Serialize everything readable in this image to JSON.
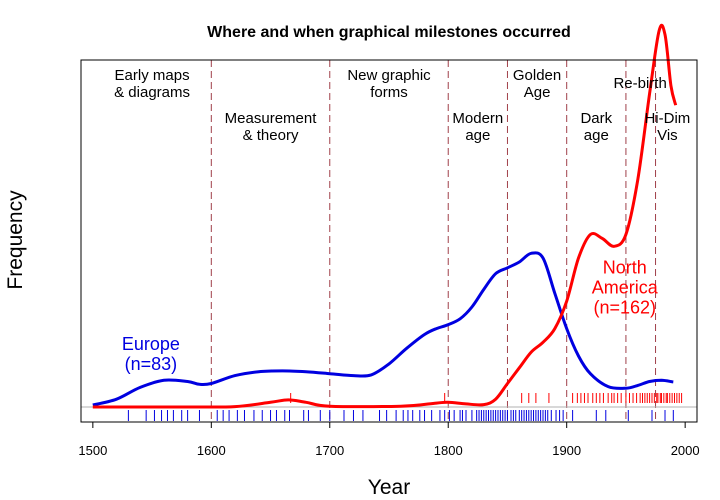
{
  "chart_data": {
    "type": "line",
    "title": "Where and when graphical milestones occurred",
    "xlabel": "Year",
    "ylabel": "Frequency",
    "xlim": [
      1490,
      2010
    ],
    "ylim": [
      0,
      1
    ],
    "x_ticks": [
      "1500",
      "1600",
      "1700",
      "1800",
      "1900",
      "2000"
    ],
    "grid": false,
    "period_boundaries": [
      1600,
      1700,
      1800,
      1850,
      1900,
      1950,
      1975
    ],
    "period_line_color": "#a0404a",
    "periods": [
      {
        "lines": [
          "Early maps",
          "& diagrams"
        ],
        "x": 1550,
        "row": "top"
      },
      {
        "lines": [
          "Measurement",
          "& theory"
        ],
        "x": 1650,
        "row": "low"
      },
      {
        "lines": [
          "New graphic",
          "forms"
        ],
        "x": 1750,
        "row": "top"
      },
      {
        "lines": [
          "Modern",
          "age"
        ],
        "x": 1825,
        "row": "low"
      },
      {
        "lines": [
          "Golden",
          "Age"
        ],
        "x": 1875,
        "row": "top"
      },
      {
        "lines": [
          "Dark",
          "age"
        ],
        "x": 1925,
        "row": "low"
      },
      {
        "lines": [
          "Re-birth"
        ],
        "x": 1962,
        "row": "mid"
      },
      {
        "lines": [
          "Hi-Dim",
          "Vis"
        ],
        "x": 1985,
        "row": "low"
      }
    ],
    "series": [
      {
        "name": "Europe",
        "label_lines": [
          "Europe",
          "(n=83)"
        ],
        "label_x": 1549,
        "label_y": 0.145,
        "color": "#0000e0",
        "points": [
          [
            1500,
            0.005
          ],
          [
            1520,
            0.02
          ],
          [
            1540,
            0.05
          ],
          [
            1560,
            0.068
          ],
          [
            1580,
            0.065
          ],
          [
            1590,
            0.058
          ],
          [
            1600,
            0.06
          ],
          [
            1620,
            0.08
          ],
          [
            1640,
            0.09
          ],
          [
            1660,
            0.092
          ],
          [
            1680,
            0.09
          ],
          [
            1700,
            0.085
          ],
          [
            1720,
            0.08
          ],
          [
            1735,
            0.082
          ],
          [
            1750,
            0.11
          ],
          [
            1765,
            0.15
          ],
          [
            1780,
            0.185
          ],
          [
            1790,
            0.2
          ],
          [
            1800,
            0.21
          ],
          [
            1810,
            0.225
          ],
          [
            1820,
            0.255
          ],
          [
            1830,
            0.3
          ],
          [
            1840,
            0.34
          ],
          [
            1850,
            0.355
          ],
          [
            1860,
            0.37
          ],
          [
            1870,
            0.392
          ],
          [
            1880,
            0.38
          ],
          [
            1890,
            0.29
          ],
          [
            1900,
            0.2
          ],
          [
            1910,
            0.13
          ],
          [
            1920,
            0.085
          ],
          [
            1935,
            0.052
          ],
          [
            1950,
            0.048
          ],
          [
            1960,
            0.055
          ],
          [
            1970,
            0.065
          ],
          [
            1980,
            0.068
          ],
          [
            1990,
            0.064
          ]
        ]
      },
      {
        "name": "North America",
        "label_lines": [
          "North",
          "America",
          "(n=162)"
        ],
        "label_x": 1949,
        "label_y": 0.34,
        "color": "#ff0000",
        "points": [
          [
            1500,
            0.0
          ],
          [
            1580,
            0.0
          ],
          [
            1620,
            0.001
          ],
          [
            1650,
            0.012
          ],
          [
            1665,
            0.018
          ],
          [
            1680,
            0.012
          ],
          [
            1700,
            0.002
          ],
          [
            1760,
            0.002
          ],
          [
            1790,
            0.01
          ],
          [
            1800,
            0.012
          ],
          [
            1815,
            0.008
          ],
          [
            1830,
            0.006
          ],
          [
            1840,
            0.02
          ],
          [
            1850,
            0.06
          ],
          [
            1860,
            0.1
          ],
          [
            1870,
            0.14
          ],
          [
            1880,
            0.165
          ],
          [
            1890,
            0.2
          ],
          [
            1900,
            0.27
          ],
          [
            1910,
            0.38
          ],
          [
            1920,
            0.44
          ],
          [
            1930,
            0.43
          ],
          [
            1940,
            0.41
          ],
          [
            1950,
            0.44
          ],
          [
            1960,
            0.58
          ],
          [
            1970,
            0.8
          ],
          [
            1978,
            0.96
          ],
          [
            1983,
            0.95
          ],
          [
            1988,
            0.82
          ],
          [
            1992,
            0.77
          ]
        ]
      }
    ],
    "rugs": [
      {
        "name": "Europe",
        "color": "#0000e0",
        "years": [
          1530,
          1545,
          1552,
          1558,
          1563,
          1568,
          1575,
          1580,
          1590,
          1605,
          1610,
          1615,
          1622,
          1628,
          1636,
          1643,
          1650,
          1655,
          1662,
          1666,
          1678,
          1682,
          1692,
          1700,
          1712,
          1720,
          1728,
          1742,
          1748,
          1756,
          1762,
          1766,
          1770,
          1776,
          1780,
          1786,
          1793,
          1797,
          1801,
          1805,
          1810,
          1812,
          1815,
          1820,
          1824,
          1826,
          1828,
          1830,
          1832,
          1834,
          1836,
          1838,
          1840,
          1842,
          1844,
          1846,
          1848,
          1850,
          1853,
          1855,
          1857,
          1860,
          1862,
          1864,
          1866,
          1868,
          1870,
          1872,
          1874,
          1876,
          1878,
          1880,
          1882,
          1884,
          1887,
          1891,
          1894,
          1897,
          1905,
          1925,
          1933,
          1952,
          1972,
          1983,
          1990
        ]
      },
      {
        "name": "North America",
        "color": "#ff0000",
        "years": [
          1667,
          1797,
          1862,
          1868,
          1874,
          1885,
          1905,
          1909,
          1912,
          1915,
          1918,
          1922,
          1925,
          1928,
          1931,
          1935,
          1938,
          1940,
          1943,
          1946,
          1950,
          1953,
          1956,
          1959,
          1962,
          1964,
          1966,
          1968,
          1970,
          1972,
          1974,
          1976,
          1977,
          1979,
          1980,
          1982,
          1984,
          1985,
          1987,
          1989,
          1991,
          1993,
          1995,
          1997
        ]
      }
    ]
  }
}
